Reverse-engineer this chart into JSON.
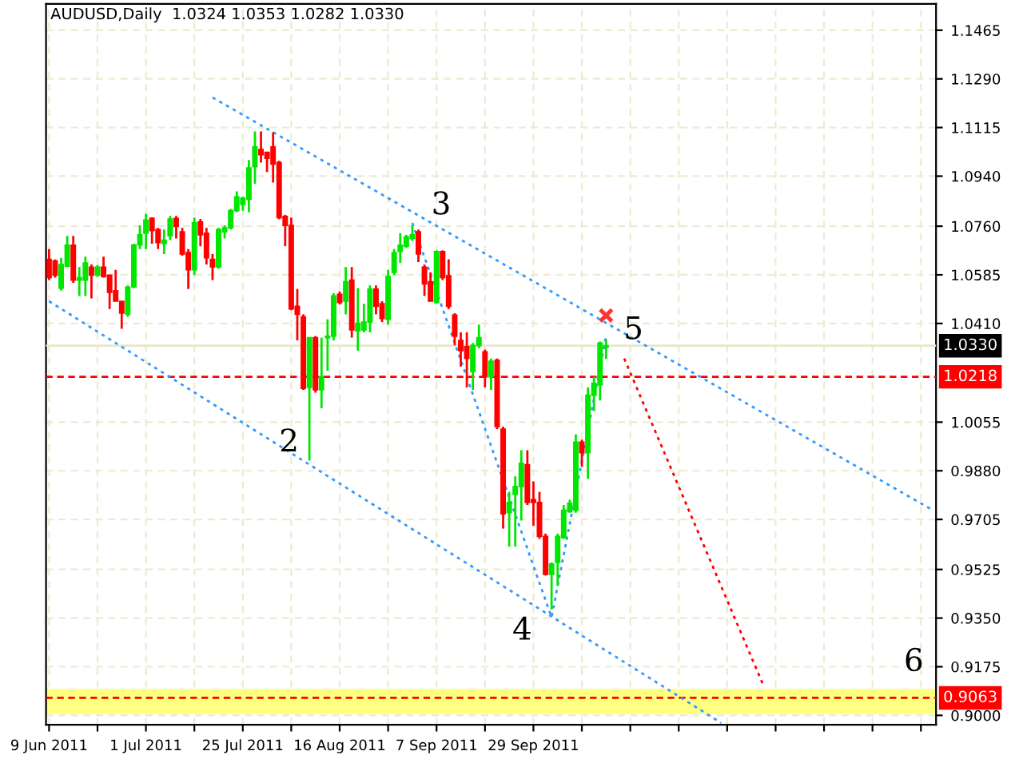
{
  "chart_data": {
    "type": "candlestick",
    "title": "AUDUSD,Daily  1.0324 1.0353 1.0282 1.0330",
    "categories": [
      "9 Jun 2011",
      null,
      null,
      null,
      null,
      null,
      null,
      null,
      null,
      null,
      null,
      null,
      null,
      null,
      null,
      null,
      "1 Jul 2011",
      null,
      null,
      null,
      null,
      null,
      null,
      null,
      null,
      null,
      null,
      null,
      null,
      null,
      null,
      null,
      "25 Jul 2011",
      null,
      null,
      null,
      null,
      null,
      null,
      null,
      null,
      null,
      null,
      null,
      null,
      null,
      null,
      null,
      "16 Aug 2011",
      null,
      null,
      null,
      null,
      null,
      null,
      null,
      null,
      null,
      null,
      null,
      null,
      null,
      null,
      null,
      "7 Sep 2011",
      null,
      null,
      null,
      null,
      null,
      null,
      null,
      null,
      null,
      null,
      null,
      null,
      null,
      null,
      null,
      "29 Sep 2011",
      null,
      null,
      null,
      null,
      null,
      null,
      null,
      null,
      null,
      null,
      null,
      null,
      null,
      null,
      null,
      null,
      null,
      null,
      null,
      null,
      null,
      null,
      null,
      null,
      null,
      null,
      null,
      null,
      null,
      null,
      null,
      null,
      null,
      null,
      null,
      null,
      null,
      null,
      null,
      null,
      null,
      null,
      null,
      null,
      null,
      null,
      null,
      null,
      null,
      null,
      null,
      null,
      null,
      null,
      null,
      null,
      null,
      null,
      null,
      null,
      null,
      null,
      null,
      null,
      null,
      null
    ],
    "ohlc": [
      [
        1.0641,
        1.0678,
        1.0566,
        1.0575
      ],
      [
        1.0635,
        1.064,
        1.0575,
        1.0584
      ],
      [
        1.0537,
        1.0646,
        1.0528,
        1.0622
      ],
      [
        1.0616,
        1.0725,
        1.0613,
        1.0692
      ],
      [
        1.0692,
        1.0725,
        1.0556,
        1.0566
      ],
      [
        1.0566,
        1.0613,
        1.0509,
        1.0575
      ],
      [
        1.0566,
        1.065,
        1.0509,
        1.0628
      ],
      [
        1.0613,
        1.0622,
        1.05,
        1.0584
      ],
      [
        1.0584,
        1.062,
        1.0578,
        1.0613
      ],
      [
        1.0613,
        1.065,
        1.0575,
        1.0579
      ],
      [
        1.0584,
        1.0584,
        1.0462,
        1.0522
      ],
      [
        1.0528,
        1.0603,
        1.049,
        1.049
      ],
      [
        1.049,
        1.049,
        1.0391,
        1.0447
      ],
      [
        1.0443,
        1.0547,
        1.0434,
        1.0541
      ],
      [
        1.0541,
        1.0697,
        1.0537,
        1.0692
      ],
      [
        1.0692,
        1.0763,
        1.0678,
        1.0729
      ],
      [
        1.0735,
        1.0804,
        1.0678,
        1.0782
      ],
      [
        1.0789,
        1.0791,
        1.0697,
        1.0744
      ],
      [
        1.0748,
        1.0754,
        1.0678,
        1.0701
      ],
      [
        1.0697,
        1.0748,
        1.066,
        1.071
      ],
      [
        1.0725,
        1.0797,
        1.071,
        1.0786
      ],
      [
        1.0788,
        1.0797,
        1.0716,
        1.0759
      ],
      [
        1.074,
        1.0754,
        1.0654,
        1.066
      ],
      [
        1.0665,
        1.0678,
        1.0534,
        1.0603
      ],
      [
        1.0603,
        1.0791,
        1.0584,
        1.0772
      ],
      [
        1.0776,
        1.0786,
        1.0688,
        1.0729
      ],
      [
        1.0735,
        1.0754,
        1.0622,
        1.0646
      ],
      [
        1.0641,
        1.066,
        1.0566,
        1.0613
      ],
      [
        1.0613,
        1.0754,
        1.0607,
        1.0748
      ],
      [
        1.074,
        1.0763,
        1.0716,
        1.0754
      ],
      [
        1.0754,
        1.0822,
        1.0748,
        1.0816
      ],
      [
        1.0816,
        1.0885,
        1.081,
        1.0866
      ],
      [
        1.0838,
        1.0866,
        1.0816,
        1.0861
      ],
      [
        1.0857,
        1.0998,
        1.081,
        1.097
      ],
      [
        1.0974,
        1.1101,
        1.0913,
        1.1045
      ],
      [
        1.1036,
        1.1101,
        1.0989,
        1.1017
      ],
      [
        1.1026,
        1.1026,
        1.0955,
        1.1004
      ],
      [
        1.1045,
        1.1098,
        1.0917,
        1.0983
      ],
      [
        1.0989,
        1.0995,
        1.0785,
        1.0791
      ],
      [
        1.0795,
        1.0801,
        1.0688,
        1.0763
      ],
      [
        1.0763,
        1.0791,
        1.0458,
        1.0462
      ],
      [
        1.0472,
        1.0534,
        1.0349,
        1.0443
      ],
      [
        1.0434,
        1.0443,
        1.0171,
        1.0176
      ],
      [
        1.018,
        1.0359,
        0.9917,
        1.0359
      ],
      [
        1.0359,
        1.0365,
        1.0161,
        1.0171
      ],
      [
        1.0171,
        1.0359,
        1.0105,
        1.0218
      ],
      [
        1.0359,
        1.0425,
        1.024,
        1.0364
      ],
      [
        1.0364,
        1.0519,
        1.0349,
        1.0509
      ],
      [
        1.0515,
        1.0525,
        1.0478,
        1.0485
      ],
      [
        1.049,
        1.0613,
        1.0443,
        1.056
      ],
      [
        1.0566,
        1.0613,
        1.0359,
        1.0387
      ],
      [
        1.0383,
        1.0537,
        1.0312,
        1.0411
      ],
      [
        1.0387,
        1.0481,
        1.0378,
        1.0415
      ],
      [
        1.0415,
        1.0547,
        1.0378,
        1.0534
      ],
      [
        1.0534,
        1.0547,
        1.0443,
        1.0472
      ],
      [
        1.0481,
        1.049,
        1.0415,
        1.0428
      ],
      [
        1.0425,
        1.0603,
        1.0406,
        1.0579
      ],
      [
        1.0594,
        1.0678,
        1.0584,
        1.0665
      ],
      [
        1.0669,
        1.0735,
        1.0628,
        1.0692
      ],
      [
        1.0688,
        1.0729,
        1.0682,
        1.0722
      ],
      [
        1.0716,
        1.0763,
        1.0707,
        1.0729
      ],
      [
        1.074,
        1.0748,
        1.0631,
        1.066
      ],
      [
        1.0613,
        1.0622,
        1.0509,
        1.0552
      ],
      [
        1.056,
        1.0594,
        1.049,
        1.049
      ],
      [
        1.0485,
        1.0673,
        1.0481,
        1.0669
      ],
      [
        1.0669,
        1.0673,
        1.0566,
        1.0575
      ],
      [
        1.0582,
        1.0641,
        1.0462,
        1.0472
      ],
      [
        1.044,
        1.0447,
        1.0331,
        1.0364
      ],
      [
        1.0349,
        1.0378,
        1.0255,
        1.0312
      ],
      [
        1.0327,
        1.0378,
        1.018,
        1.0284
      ],
      [
        1.0237,
        1.034,
        1.0171,
        1.0331
      ],
      [
        1.0331,
        1.0406,
        1.0321,
        1.0359
      ],
      [
        1.0308,
        1.0316,
        1.018,
        1.0218
      ],
      [
        1.0218,
        1.0284,
        1.0171,
        1.0274
      ],
      [
        1.0278,
        1.0284,
        1.003,
        1.0039
      ],
      [
        1.003,
        1.0039,
        0.9672,
        0.9725
      ],
      [
        0.9729,
        0.9804,
        0.9607,
        0.9766
      ],
      [
        0.9795,
        0.986,
        0.9607,
        0.9823
      ],
      [
        0.9823,
        0.9954,
        0.9701,
        0.9907
      ],
      [
        0.9902,
        0.9954,
        0.9757,
        0.9766
      ],
      [
        0.9776,
        0.9842,
        0.9682,
        0.9766
      ],
      [
        0.9766,
        0.9804,
        0.9635,
        0.9644
      ],
      [
        0.9644,
        0.9654,
        0.9503,
        0.9507
      ],
      [
        0.9507,
        0.955,
        0.9381,
        0.9545
      ],
      [
        0.955,
        0.9654,
        0.9466,
        0.9644
      ],
      [
        0.9639,
        0.9757,
        0.9635,
        0.9738
      ],
      [
        0.9733,
        0.9776,
        0.9729,
        0.9763
      ],
      [
        0.9738,
        1.0011,
        0.9729,
        0.9983
      ],
      [
        0.9983,
        0.9992,
        0.9894,
        0.9945
      ],
      [
        0.9945,
        1.018,
        0.9851,
        1.0152
      ],
      [
        1.0152,
        1.0218,
        1.0095,
        1.0195
      ],
      [
        1.0189,
        1.0345,
        1.0133,
        1.034
      ],
      [
        1.0324,
        1.0353,
        1.0282,
        1.033
      ],
      null,
      null,
      null,
      null,
      null,
      null,
      null,
      null,
      null,
      null,
      null,
      null,
      null,
      null,
      null,
      null,
      null,
      null,
      null,
      null,
      null,
      null,
      null,
      null,
      null,
      null,
      null,
      null,
      null,
      null,
      null,
      null,
      null,
      null,
      null,
      null,
      null,
      null,
      null,
      null,
      null,
      null,
      null,
      null,
      null,
      null,
      null,
      null,
      null,
      null,
      null,
      null,
      null,
      null
    ],
    "colors": [
      "#ff0000",
      "#ff0000",
      "#00e600",
      "#00e600",
      "#ff0000",
      "#00e600",
      "#00e600",
      "#ff0000",
      "#00e600",
      "#ff0000",
      "#ff0000",
      "#ff0000",
      "#ff0000",
      "#00e600",
      "#00e600",
      "#00e600",
      "#00e600",
      "#ff0000",
      "#ff0000",
      "#00e600",
      "#00e600",
      "#ff0000",
      "#ff0000",
      "#ff0000",
      "#00e600",
      "#ff0000",
      "#ff0000",
      "#ff0000",
      "#00e600",
      "#00e600",
      "#00e600",
      "#00e600",
      "#00e600",
      "#00e600",
      "#00e600",
      "#ff0000",
      "#ff0000",
      "#ff0000",
      "#ff0000",
      "#ff0000",
      "#ff0000",
      "#ff0000",
      "#ff0000",
      "#00e600",
      "#ff0000",
      "#00e600",
      "#00e600",
      "#00e600",
      "#ff0000",
      "#00e600",
      "#ff0000",
      "#00e600",
      "#00e600",
      "#00e600",
      "#ff0000",
      "#ff0000",
      "#00e600",
      "#00e600",
      "#00e600",
      "#00e600",
      "#00e600",
      "#ff0000",
      "#ff0000",
      "#ff0000",
      "#00e600",
      "#ff0000",
      "#ff0000",
      "#ff0000",
      "#ff0000",
      "#ff0000",
      "#00e600",
      "#00e600",
      "#ff0000",
      "#00e600",
      "#ff0000",
      "#ff0000",
      "#00e600",
      "#00e600",
      "#00e600",
      "#ff0000",
      "#ff0000",
      "#ff0000",
      "#ff0000",
      "#00e600",
      "#00e600",
      "#00e600",
      "#00e600",
      "#00e600",
      "#ff0000",
      "#00e600",
      "#00e600",
      "#00e600",
      "#00e600",
      null,
      null,
      null,
      null,
      null,
      null,
      null,
      null,
      null,
      null,
      null,
      null,
      null,
      null,
      null,
      null,
      null,
      null,
      null,
      null,
      null,
      null,
      null,
      null,
      null,
      null,
      null,
      null,
      null,
      null,
      null,
      null,
      null,
      null,
      null,
      null,
      null,
      null,
      null,
      null,
      null,
      null,
      null,
      null,
      null,
      null,
      null,
      null,
      null,
      null,
      null,
      null,
      null,
      null
    ],
    "series": [
      {
        "type": "line",
        "color": "#3399ff",
        "line_style": "dotted",
        "values": [
          null,
          null,
          null,
          null,
          null,
          null,
          null,
          null,
          null,
          null,
          null,
          null,
          null,
          null,
          null,
          null,
          null,
          null,
          null,
          null,
          null,
          null,
          null,
          null,
          null,
          null,
          null,
          1.1223,
          null,
          null,
          null,
          null,
          null,
          null,
          null,
          null,
          null,
          null,
          null,
          null,
          null,
          null,
          null,
          null,
          null,
          null,
          null,
          null,
          null,
          null,
          null,
          null,
          null,
          null,
          null,
          null,
          null,
          null,
          null,
          null,
          null,
          null,
          null,
          null,
          null,
          null,
          null,
          null,
          null,
          null,
          null,
          null,
          null,
          null,
          null,
          null,
          null,
          null,
          null,
          null,
          null,
          null,
          null,
          null,
          null,
          null,
          null,
          null,
          null,
          null,
          null,
          null,
          null,
          null,
          null,
          null,
          null,
          null,
          null,
          null,
          null,
          null,
          null,
          null,
          null,
          null,
          null,
          null,
          null,
          null,
          null,
          null,
          null,
          null,
          null,
          null,
          null,
          null,
          null,
          null,
          null,
          null,
          null,
          null,
          null,
          null,
          null,
          null,
          null,
          null,
          null,
          null,
          null,
          null,
          null,
          null,
          null,
          null,
          null,
          null,
          null,
          null,
          null,
          null,
          null,
          null,
          0.9738
        ]
      },
      {
        "type": "line",
        "color": "#3399ff",
        "line_style": "dotted",
        "values": [
          1.049,
          null,
          null,
          null,
          null,
          null,
          null,
          null,
          null,
          null,
          null,
          null,
          null,
          null,
          null,
          null,
          null,
          null,
          null,
          null,
          null,
          null,
          null,
          null,
          null,
          null,
          null,
          null,
          null,
          null,
          null,
          null,
          null,
          null,
          null,
          null,
          null,
          null,
          null,
          null,
          null,
          null,
          null,
          null,
          null,
          null,
          null,
          null,
          null,
          null,
          null,
          null,
          null,
          null,
          null,
          null,
          null,
          null,
          null,
          null,
          null,
          null,
          null,
          null,
          null,
          null,
          null,
          null,
          null,
          null,
          null,
          null,
          null,
          null,
          null,
          null,
          null,
          null,
          null,
          null,
          null,
          null,
          null,
          null,
          null,
          null,
          null,
          null,
          null,
          null,
          null,
          null,
          null,
          null,
          null,
          null,
          null,
          null,
          null,
          null,
          null,
          null,
          null,
          null,
          null,
          null,
          null,
          null,
          null,
          null,
          null,
          0.8973,
          null,
          null,
          null,
          null,
          null,
          null,
          null,
          null,
          null,
          null,
          null,
          null,
          null,
          null,
          null,
          null,
          null,
          null,
          null,
          null,
          null,
          null,
          null,
          null,
          null,
          null,
          null,
          null,
          null,
          null,
          null,
          null,
          null,
          null,
          null
        ]
      },
      {
        "type": "line",
        "color": "#3399ff",
        "line_style": "dotted",
        "values": [
          null,
          null,
          null,
          null,
          null,
          null,
          null,
          null,
          null,
          null,
          null,
          null,
          null,
          null,
          null,
          null,
          null,
          null,
          null,
          null,
          null,
          null,
          null,
          null,
          null,
          null,
          null,
          null,
          null,
          null,
          null,
          null,
          null,
          null,
          null,
          null,
          null,
          null,
          null,
          null,
          null,
          null,
          null,
          null,
          null,
          null,
          null,
          null,
          null,
          null,
          null,
          null,
          null,
          null,
          null,
          null,
          null,
          null,
          null,
          null,
          1.0772,
          null,
          null,
          null,
          null,
          null,
          null,
          null,
          null,
          null,
          null,
          null,
          null,
          null,
          null,
          null,
          null,
          null,
          null,
          null,
          null,
          null,
          null,
          0.9353,
          null,
          null,
          null,
          null,
          null,
          null,
          null,
          null,
          1.0364,
          null,
          null,
          null,
          null,
          null,
          null,
          null,
          null,
          null,
          null,
          null,
          null,
          null,
          null,
          null,
          null,
          null,
          null,
          null,
          null,
          null,
          null,
          null,
          null,
          null,
          null,
          null,
          null,
          null,
          null,
          null,
          null,
          null,
          null,
          null,
          null,
          null,
          null,
          null,
          null,
          null,
          null,
          null,
          null,
          null,
          null,
          null,
          null,
          null,
          null,
          null,
          null,
          null,
          null
        ]
      },
      {
        "type": "line",
        "color": "#ff0000",
        "line_style": "dotted",
        "values": [
          null,
          null,
          null,
          null,
          null,
          null,
          null,
          null,
          null,
          null,
          null,
          null,
          null,
          null,
          null,
          null,
          null,
          null,
          null,
          null,
          null,
          null,
          null,
          null,
          null,
          null,
          null,
          null,
          null,
          null,
          null,
          null,
          null,
          null,
          null,
          null,
          null,
          null,
          null,
          null,
          null,
          null,
          null,
          null,
          null,
          null,
          null,
          null,
          null,
          null,
          null,
          null,
          null,
          null,
          null,
          null,
          null,
          null,
          null,
          null,
          null,
          null,
          null,
          null,
          null,
          null,
          null,
          null,
          null,
          null,
          null,
          null,
          null,
          null,
          null,
          null,
          null,
          null,
          null,
          null,
          null,
          null,
          null,
          null,
          null,
          null,
          null,
          null,
          null,
          null,
          null,
          null,
          null,
          null,
          null,
          1.0284,
          null,
          null,
          null,
          null,
          null,
          null,
          null,
          null,
          null,
          null,
          null,
          null,
          null,
          null,
          null,
          null,
          null,
          null,
          null,
          null,
          null,
          null,
          0.9107,
          null,
          null,
          null,
          null,
          null,
          null,
          null,
          null,
          null,
          null,
          null,
          null,
          null,
          null,
          null,
          null,
          null,
          null,
          null,
          null,
          null,
          null,
          null,
          null,
          null,
          null,
          null,
          null
        ]
      },
      {
        "type": "scatter",
        "color": "#ff3333",
        "marker": "cross",
        "values": [
          null,
          null,
          null,
          null,
          null,
          null,
          null,
          null,
          null,
          null,
          null,
          null,
          null,
          null,
          null,
          null,
          null,
          null,
          null,
          null,
          null,
          null,
          null,
          null,
          null,
          null,
          null,
          null,
          null,
          null,
          null,
          null,
          null,
          null,
          null,
          null,
          null,
          null,
          null,
          null,
          null,
          null,
          null,
          null,
          null,
          null,
          null,
          null,
          null,
          null,
          null,
          null,
          null,
          null,
          null,
          null,
          null,
          null,
          null,
          null,
          null,
          null,
          null,
          null,
          null,
          null,
          null,
          null,
          null,
          null,
          null,
          null,
          null,
          null,
          null,
          null,
          null,
          null,
          null,
          null,
          null,
          null,
          null,
          null,
          null,
          null,
          null,
          null,
          null,
          null,
          null,
          null,
          1.0439,
          null,
          null,
          null,
          null,
          null,
          null,
          null,
          null,
          null,
          null,
          null,
          null,
          null,
          null,
          null,
          null,
          null,
          null,
          null,
          null,
          null,
          null,
          null,
          null,
          null,
          null,
          null,
          null,
          null,
          null,
          null,
          null,
          null,
          null,
          null,
          null,
          null,
          null,
          null,
          null,
          null,
          null,
          null,
          null,
          null,
          null,
          null,
          null,
          null,
          null,
          null,
          null,
          null,
          null
        ]
      }
    ],
    "ylim": [
      0.8966,
      1.156
    ],
    "yticks": [
      {
        "value": 1.1465,
        "label": "1.1465"
      },
      {
        "value": 1.129,
        "label": "1.1290"
      },
      {
        "value": 1.1115,
        "label": "1.1115"
      },
      {
        "value": 1.094,
        "label": "1.0940"
      },
      {
        "value": 1.076,
        "label": "1.0760"
      },
      {
        "value": 1.0585,
        "label": "1.0585"
      },
      {
        "value": 1.041,
        "label": "1.0410"
      },
      {
        "value": 1.0055,
        "label": "1.0055"
      },
      {
        "value": 0.988,
        "label": "0.9880"
      },
      {
        "value": 0.9705,
        "label": "0.9705"
      },
      {
        "value": 0.9525,
        "label": "0.9525"
      },
      {
        "value": 0.935,
        "label": "0.9350"
      },
      {
        "value": 0.9175,
        "label": "0.9175"
      },
      {
        "value": 0.9,
        "label": "0.9000"
      }
    ],
    "grid": true,
    "ref_lines": [
      {
        "axis": "y",
        "value": 1.033,
        "label": "1.0330",
        "color": "#e8e6cc",
        "line_style": "solid"
      },
      {
        "axis": "y",
        "value": 1.0218,
        "label": "1.0218",
        "color": "#ff0000",
        "line_style": "dashed"
      },
      {
        "axis": "y",
        "value": 0.9063,
        "label": "0.9063",
        "color": "#ff0000",
        "line_style": "dashed"
      }
    ],
    "bands": [
      {
        "axis": "y",
        "from": 0.9005,
        "to": 0.9095,
        "color": "#ffff80"
      }
    ],
    "annotations": [
      "2",
      "3",
      "4",
      {
        "text": "5",
        "y": 1.0353
      },
      {
        "text": "6",
        "y": 0.9095
      }
    ]
  }
}
